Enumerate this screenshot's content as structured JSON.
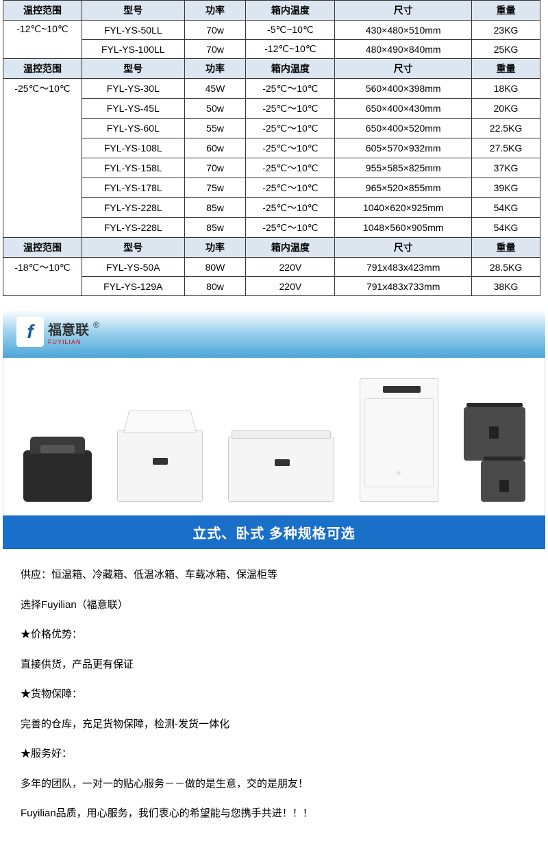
{
  "headers": [
    "温控范围",
    "型号",
    "功率",
    "箱内温度",
    "尺寸",
    "重量"
  ],
  "section1": {
    "range": "-12℃~10℃",
    "rows": [
      {
        "model": "FYL-YS-50LL",
        "power": "70w",
        "temp": "-5℃~10℃",
        "size": "430×480×510mm",
        "weight": "23KG"
      },
      {
        "model": "FYL-YS-100LL",
        "power": "70w",
        "temp": "-12℃~10℃",
        "size": "480×490×840mm",
        "weight": "25KG"
      }
    ]
  },
  "section2": {
    "range": "-25℃～10℃",
    "rows": [
      {
        "model": "FYL-YS-30L",
        "power": "45W",
        "temp": "-25℃～10℃",
        "size": "560×400×398mm",
        "weight": "18KG"
      },
      {
        "model": "FYL-YS-45L",
        "power": "50w",
        "temp": "-25℃～10℃",
        "size": "650×400×430mm",
        "weight": "20KG"
      },
      {
        "model": "FYL-YS-60L",
        "power": "55w",
        "temp": "-25℃～10℃",
        "size": "650×400×520mm",
        "weight": "22.5KG"
      },
      {
        "model": "FYL-YS-108L",
        "power": "60w",
        "temp": "-25℃～10℃",
        "size": "605×570×932mm",
        "weight": "27.5KG"
      },
      {
        "model": "FYL-YS-158L",
        "power": "70w",
        "temp": "-25℃～10℃",
        "size": "955×585×825mm",
        "weight": "37KG"
      },
      {
        "model": "FYL-YS-178L",
        "power": "75w",
        "temp": "-25℃～10℃",
        "size": "965×520×855mm",
        "weight": "39KG"
      },
      {
        "model": "FYL-YS-228L",
        "power": "85w",
        "temp": "-25℃～10℃",
        "size": "1040×620×925mm",
        "weight": "54KG"
      },
      {
        "model": "FYL-YS-228L",
        "power": "85w",
        "temp": "-25℃～10℃",
        "size": "1048×560×905mm",
        "weight": "54KG"
      }
    ]
  },
  "section3": {
    "range": "-18℃～10℃",
    "rows": [
      {
        "model": "FYL-YS-50A",
        "power": "80W",
        "temp": "220V",
        "size": "791x483x423mm",
        "weight": "28.5KG"
      },
      {
        "model": "FYL-YS-129A",
        "power": "80w",
        "temp": "220V",
        "size": "791x483x733mm",
        "weight": "38KG"
      }
    ]
  },
  "logo": {
    "icon": "f",
    "cn": "福意联",
    "en": "FUYILIAN",
    "r": "®"
  },
  "banner_text": "立式、卧式  多种规格可选",
  "content": {
    "p1": "供应：恒温箱、冷藏箱、低温冰箱、车载冰箱、保温柜等",
    "p2": "选择Fuyilian（福意联）",
    "p3": "★价格优势：",
    "p4": "直接供货，产品更有保证",
    "p5": "★货物保障：",
    "p6": "完善的仓库，充足货物保障，检测-发货一体化",
    "p7": "★服务好：",
    "p8": "多年的团队，一对一的贴心服务－－做的是生意，交的是朋友！",
    "p9": "Fuyilian品质，用心服务，我们衷心的希望能与您携手共进！！！"
  }
}
